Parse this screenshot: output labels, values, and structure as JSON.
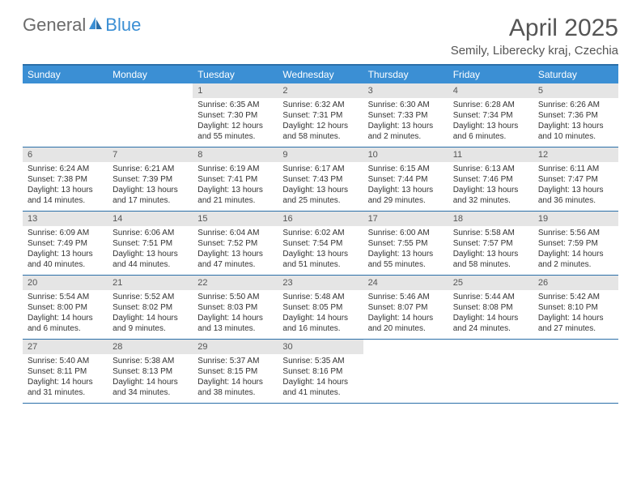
{
  "logo": {
    "text_general": "General",
    "text_blue": "Blue"
  },
  "title": "April 2025",
  "location": "Semily, Liberecky kraj, Czechia",
  "colors": {
    "header_bg": "#3b8fd4",
    "header_text": "#ffffff",
    "border": "#2b6fa8",
    "daynum_bg": "#e5e5e5",
    "body_text": "#333333",
    "title_text": "#555555"
  },
  "day_headers": [
    "Sunday",
    "Monday",
    "Tuesday",
    "Wednesday",
    "Thursday",
    "Friday",
    "Saturday"
  ],
  "weeks": [
    [
      {
        "empty": true
      },
      {
        "empty": true
      },
      {
        "num": "1",
        "sunrise": "Sunrise: 6:35 AM",
        "sunset": "Sunset: 7:30 PM",
        "daylight1": "Daylight: 12 hours",
        "daylight2": "and 55 minutes."
      },
      {
        "num": "2",
        "sunrise": "Sunrise: 6:32 AM",
        "sunset": "Sunset: 7:31 PM",
        "daylight1": "Daylight: 12 hours",
        "daylight2": "and 58 minutes."
      },
      {
        "num": "3",
        "sunrise": "Sunrise: 6:30 AM",
        "sunset": "Sunset: 7:33 PM",
        "daylight1": "Daylight: 13 hours",
        "daylight2": "and 2 minutes."
      },
      {
        "num": "4",
        "sunrise": "Sunrise: 6:28 AM",
        "sunset": "Sunset: 7:34 PM",
        "daylight1": "Daylight: 13 hours",
        "daylight2": "and 6 minutes."
      },
      {
        "num": "5",
        "sunrise": "Sunrise: 6:26 AM",
        "sunset": "Sunset: 7:36 PM",
        "daylight1": "Daylight: 13 hours",
        "daylight2": "and 10 minutes."
      }
    ],
    [
      {
        "num": "6",
        "sunrise": "Sunrise: 6:24 AM",
        "sunset": "Sunset: 7:38 PM",
        "daylight1": "Daylight: 13 hours",
        "daylight2": "and 14 minutes."
      },
      {
        "num": "7",
        "sunrise": "Sunrise: 6:21 AM",
        "sunset": "Sunset: 7:39 PM",
        "daylight1": "Daylight: 13 hours",
        "daylight2": "and 17 minutes."
      },
      {
        "num": "8",
        "sunrise": "Sunrise: 6:19 AM",
        "sunset": "Sunset: 7:41 PM",
        "daylight1": "Daylight: 13 hours",
        "daylight2": "and 21 minutes."
      },
      {
        "num": "9",
        "sunrise": "Sunrise: 6:17 AM",
        "sunset": "Sunset: 7:43 PM",
        "daylight1": "Daylight: 13 hours",
        "daylight2": "and 25 minutes."
      },
      {
        "num": "10",
        "sunrise": "Sunrise: 6:15 AM",
        "sunset": "Sunset: 7:44 PM",
        "daylight1": "Daylight: 13 hours",
        "daylight2": "and 29 minutes."
      },
      {
        "num": "11",
        "sunrise": "Sunrise: 6:13 AM",
        "sunset": "Sunset: 7:46 PM",
        "daylight1": "Daylight: 13 hours",
        "daylight2": "and 32 minutes."
      },
      {
        "num": "12",
        "sunrise": "Sunrise: 6:11 AM",
        "sunset": "Sunset: 7:47 PM",
        "daylight1": "Daylight: 13 hours",
        "daylight2": "and 36 minutes."
      }
    ],
    [
      {
        "num": "13",
        "sunrise": "Sunrise: 6:09 AM",
        "sunset": "Sunset: 7:49 PM",
        "daylight1": "Daylight: 13 hours",
        "daylight2": "and 40 minutes."
      },
      {
        "num": "14",
        "sunrise": "Sunrise: 6:06 AM",
        "sunset": "Sunset: 7:51 PM",
        "daylight1": "Daylight: 13 hours",
        "daylight2": "and 44 minutes."
      },
      {
        "num": "15",
        "sunrise": "Sunrise: 6:04 AM",
        "sunset": "Sunset: 7:52 PM",
        "daylight1": "Daylight: 13 hours",
        "daylight2": "and 47 minutes."
      },
      {
        "num": "16",
        "sunrise": "Sunrise: 6:02 AM",
        "sunset": "Sunset: 7:54 PM",
        "daylight1": "Daylight: 13 hours",
        "daylight2": "and 51 minutes."
      },
      {
        "num": "17",
        "sunrise": "Sunrise: 6:00 AM",
        "sunset": "Sunset: 7:55 PM",
        "daylight1": "Daylight: 13 hours",
        "daylight2": "and 55 minutes."
      },
      {
        "num": "18",
        "sunrise": "Sunrise: 5:58 AM",
        "sunset": "Sunset: 7:57 PM",
        "daylight1": "Daylight: 13 hours",
        "daylight2": "and 58 minutes."
      },
      {
        "num": "19",
        "sunrise": "Sunrise: 5:56 AM",
        "sunset": "Sunset: 7:59 PM",
        "daylight1": "Daylight: 14 hours",
        "daylight2": "and 2 minutes."
      }
    ],
    [
      {
        "num": "20",
        "sunrise": "Sunrise: 5:54 AM",
        "sunset": "Sunset: 8:00 PM",
        "daylight1": "Daylight: 14 hours",
        "daylight2": "and 6 minutes."
      },
      {
        "num": "21",
        "sunrise": "Sunrise: 5:52 AM",
        "sunset": "Sunset: 8:02 PM",
        "daylight1": "Daylight: 14 hours",
        "daylight2": "and 9 minutes."
      },
      {
        "num": "22",
        "sunrise": "Sunrise: 5:50 AM",
        "sunset": "Sunset: 8:03 PM",
        "daylight1": "Daylight: 14 hours",
        "daylight2": "and 13 minutes."
      },
      {
        "num": "23",
        "sunrise": "Sunrise: 5:48 AM",
        "sunset": "Sunset: 8:05 PM",
        "daylight1": "Daylight: 14 hours",
        "daylight2": "and 16 minutes."
      },
      {
        "num": "24",
        "sunrise": "Sunrise: 5:46 AM",
        "sunset": "Sunset: 8:07 PM",
        "daylight1": "Daylight: 14 hours",
        "daylight2": "and 20 minutes."
      },
      {
        "num": "25",
        "sunrise": "Sunrise: 5:44 AM",
        "sunset": "Sunset: 8:08 PM",
        "daylight1": "Daylight: 14 hours",
        "daylight2": "and 24 minutes."
      },
      {
        "num": "26",
        "sunrise": "Sunrise: 5:42 AM",
        "sunset": "Sunset: 8:10 PM",
        "daylight1": "Daylight: 14 hours",
        "daylight2": "and 27 minutes."
      }
    ],
    [
      {
        "num": "27",
        "sunrise": "Sunrise: 5:40 AM",
        "sunset": "Sunset: 8:11 PM",
        "daylight1": "Daylight: 14 hours",
        "daylight2": "and 31 minutes."
      },
      {
        "num": "28",
        "sunrise": "Sunrise: 5:38 AM",
        "sunset": "Sunset: 8:13 PM",
        "daylight1": "Daylight: 14 hours",
        "daylight2": "and 34 minutes."
      },
      {
        "num": "29",
        "sunrise": "Sunrise: 5:37 AM",
        "sunset": "Sunset: 8:15 PM",
        "daylight1": "Daylight: 14 hours",
        "daylight2": "and 38 minutes."
      },
      {
        "num": "30",
        "sunrise": "Sunrise: 5:35 AM",
        "sunset": "Sunset: 8:16 PM",
        "daylight1": "Daylight: 14 hours",
        "daylight2": "and 41 minutes."
      },
      {
        "empty": true
      },
      {
        "empty": true
      },
      {
        "empty": true
      }
    ]
  ]
}
